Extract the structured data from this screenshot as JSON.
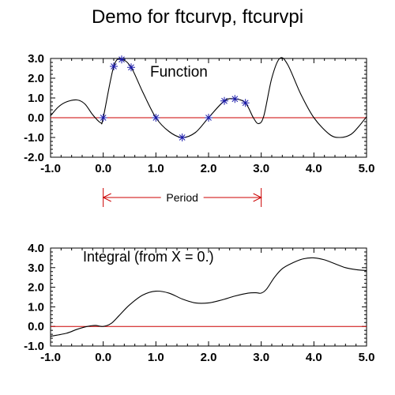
{
  "title": "Demo for ftcurvp, ftcurvpi",
  "colors": {
    "axis": "#000000",
    "curve": "#000000",
    "zero_line": "#cc0000",
    "markers": "#1a1aaa",
    "period": "#cc0000"
  },
  "chart_data": [
    {
      "type": "line",
      "annotation": "Function",
      "xlim": [
        -1.0,
        5.0
      ],
      "ylim": [
        -2.0,
        3.0
      ],
      "x_ticks": [
        -1.0,
        0.0,
        1.0,
        2.0,
        3.0,
        4.0,
        5.0
      ],
      "x_tick_labels": [
        "-1.0",
        "0.0",
        "1.0",
        "2.0",
        "3.0",
        "4.0",
        "5.0"
      ],
      "y_ticks": [
        -2.0,
        -1.0,
        0.0,
        1.0,
        2.0,
        3.0
      ],
      "y_tick_labels": [
        "-2.0",
        "-1.0",
        "0.0",
        "1.0",
        "2.0",
        "3.0"
      ],
      "reference_line_y": 0.0,
      "data_points": {
        "x": [
          0.0,
          0.2,
          0.35,
          0.53,
          1.0,
          1.5,
          2.0,
          2.3,
          2.5,
          2.7
        ],
        "y": [
          0.0,
          2.6,
          2.95,
          2.55,
          0.0,
          -1.0,
          0.0,
          0.85,
          0.95,
          0.75
        ]
      },
      "curve": {
        "x": [
          -1.0,
          -0.85,
          -0.7,
          -0.5,
          -0.35,
          -0.2,
          -0.05,
          0.0,
          0.2,
          0.35,
          0.53,
          0.75,
          1.0,
          1.25,
          1.5,
          1.75,
          2.0,
          2.3,
          2.5,
          2.7,
          2.85,
          2.95,
          3.05,
          3.2,
          3.35,
          3.5,
          3.75,
          4.0,
          4.3,
          4.5,
          4.7,
          4.85,
          5.0
        ],
        "y": [
          0.1,
          0.55,
          0.8,
          0.9,
          0.7,
          0.15,
          -0.25,
          0.0,
          2.6,
          2.95,
          2.55,
          1.3,
          0.0,
          -0.7,
          -1.0,
          -0.75,
          0.0,
          0.85,
          0.95,
          0.75,
          0.0,
          -0.3,
          0.1,
          2.0,
          3.0,
          2.7,
          1.2,
          0.0,
          -0.85,
          -1.0,
          -0.85,
          -0.45,
          0.05
        ]
      }
    },
    {
      "type": "line",
      "annotation": "Integral (from X = 0.)",
      "xlim": [
        -1.0,
        5.0
      ],
      "ylim": [
        -1.0,
        4.0
      ],
      "x_ticks": [
        -1.0,
        0.0,
        1.0,
        2.0,
        3.0,
        4.0,
        5.0
      ],
      "x_tick_labels": [
        "-1.0",
        "0.0",
        "1.0",
        "2.0",
        "3.0",
        "4.0",
        "5.0"
      ],
      "y_ticks": [
        -1.0,
        0.0,
        1.0,
        2.0,
        3.0,
        4.0
      ],
      "y_tick_labels": [
        "-1.0",
        "0.0",
        "1.0",
        "2.0",
        "3.0",
        "4.0"
      ],
      "reference_line_y": 0.0,
      "curve": {
        "x": [
          -1.0,
          -0.7,
          -0.5,
          -0.3,
          -0.15,
          0.0,
          0.15,
          0.3,
          0.5,
          0.75,
          1.0,
          1.25,
          1.5,
          1.75,
          2.0,
          2.25,
          2.5,
          2.75,
          2.9,
          3.0,
          3.1,
          3.25,
          3.4,
          3.6,
          3.8,
          4.0,
          4.2,
          4.4,
          4.6,
          4.8,
          5.0
        ],
        "y": [
          -0.5,
          -0.35,
          -0.15,
          0.0,
          0.05,
          0.0,
          0.15,
          0.55,
          1.1,
          1.6,
          1.8,
          1.7,
          1.4,
          1.2,
          1.2,
          1.35,
          1.55,
          1.7,
          1.72,
          1.7,
          1.9,
          2.5,
          2.95,
          3.25,
          3.45,
          3.5,
          3.4,
          3.2,
          3.0,
          2.9,
          2.85
        ]
      }
    }
  ],
  "period": {
    "label": "Period",
    "x_start": 0.0,
    "x_end": 3.0
  }
}
